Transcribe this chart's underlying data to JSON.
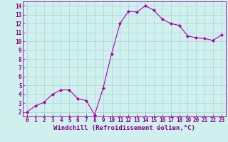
{
  "x": [
    0,
    1,
    2,
    3,
    4,
    5,
    6,
    7,
    8,
    9,
    10,
    11,
    12,
    13,
    14,
    15,
    16,
    17,
    18,
    19,
    20,
    21,
    22,
    23
  ],
  "y": [
    2,
    2.7,
    3.1,
    4.0,
    4.5,
    4.5,
    3.5,
    3.3,
    1.7,
    4.7,
    8.6,
    12.0,
    13.4,
    13.3,
    14.0,
    13.5,
    12.5,
    12.0,
    11.8,
    10.6,
    10.4,
    10.3,
    10.1,
    10.7
  ],
  "line_color": "#aa00aa",
  "marker": "D",
  "marker_size": 2,
  "xlabel": "Windchill (Refroidissement éolien,°C)",
  "xlim": [
    -0.5,
    23.5
  ],
  "ylim": [
    1.5,
    14.5
  ],
  "yticks": [
    2,
    3,
    4,
    5,
    6,
    7,
    8,
    9,
    10,
    11,
    12,
    13,
    14
  ],
  "xticks": [
    0,
    1,
    2,
    3,
    4,
    5,
    6,
    7,
    8,
    9,
    10,
    11,
    12,
    13,
    14,
    15,
    16,
    17,
    18,
    19,
    20,
    21,
    22,
    23
  ],
  "background_color": "#d0f0f0",
  "grid_color": "#b0d8d8",
  "axis_label_color": "#880088",
  "tick_color": "#880088",
  "xlabel_fontsize": 6.5,
  "tick_fontsize": 5.5
}
